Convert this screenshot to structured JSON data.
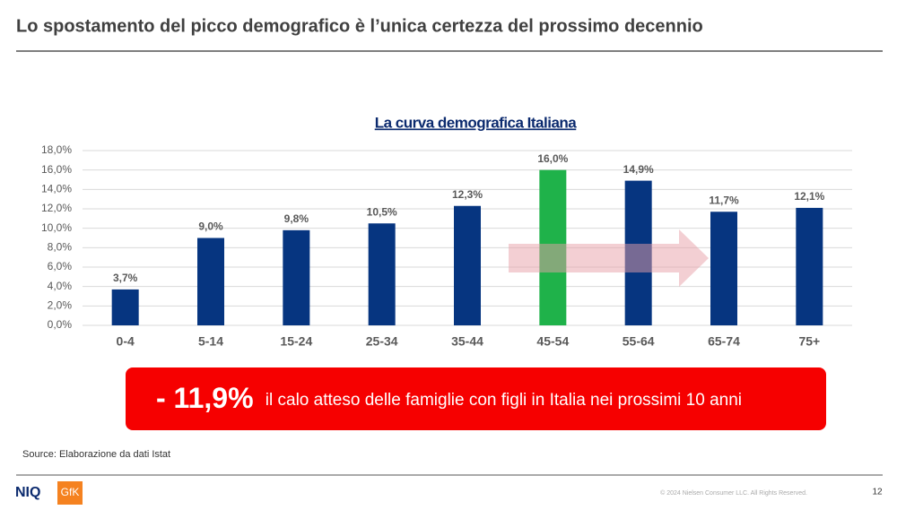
{
  "slide": {
    "title": "Lo spostamento del picco demografico è l’unica certezza del prossimo decennio",
    "callout": {
      "figure": "- 11,9%",
      "text": "il calo atteso delle famiglie con figli in Italia nei prossimi 10 anni"
    },
    "source": "Source: Elaborazione da dati Istat",
    "footer": {
      "logos": [
        "NIQ",
        "GfK"
      ],
      "copyright": "© 2024 Nielsen Consumer LLC. All Rights Reserved.",
      "page": "12"
    }
  },
  "chart_data": {
    "type": "bar",
    "title": "La curva demografica Italiana",
    "categories": [
      "0-4",
      "5-14",
      "15-24",
      "25-34",
      "35-44",
      "45-54",
      "55-64",
      "65-74",
      "75+"
    ],
    "values": [
      3.7,
      9.0,
      9.8,
      10.5,
      12.3,
      16.0,
      14.9,
      11.7,
      12.1
    ],
    "value_labels": [
      "3,7%",
      "9,0%",
      "9,8%",
      "10,5%",
      "12,3%",
      "16,0%",
      "14,9%",
      "11,7%",
      "12,1%"
    ],
    "colors": [
      "#063580",
      "#063580",
      "#063580",
      "#063580",
      "#063580",
      "#1fb24a",
      "#063580",
      "#063580",
      "#063580"
    ],
    "ylim": [
      0,
      18
    ],
    "yticks": [
      {
        "value": 0,
        "label": "0,0%"
      },
      {
        "value": 2,
        "label": "2,0%"
      },
      {
        "value": 4,
        "label": "4,0%"
      },
      {
        "value": 6,
        "label": "6,0%"
      },
      {
        "value": 8,
        "label": "8,0%"
      },
      {
        "value": 10,
        "label": "10,0%"
      },
      {
        "value": 12,
        "label": "12,0%"
      },
      {
        "value": 14,
        "label": "14,0%"
      },
      {
        "value": 16,
        "label": "16,0%"
      },
      {
        "value": 18,
        "label": "18,0%"
      }
    ],
    "grid": true
  }
}
